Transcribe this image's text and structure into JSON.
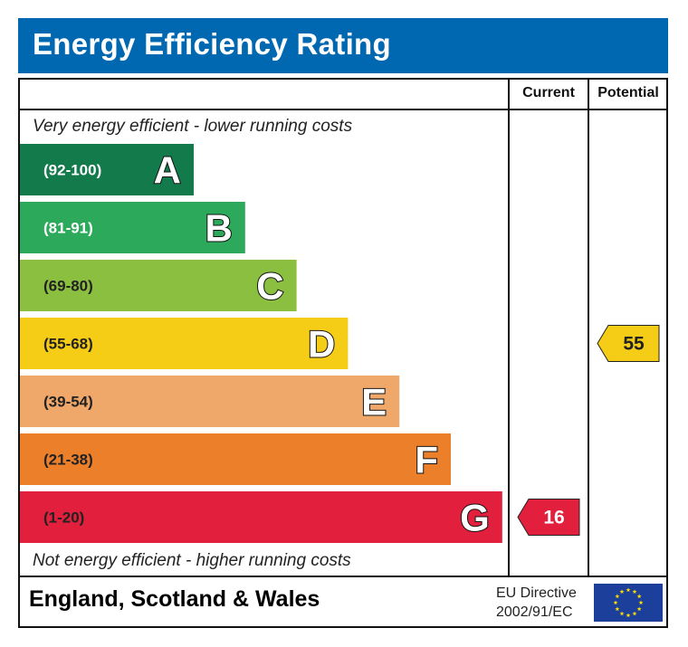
{
  "header": {
    "title": "Energy Efficiency Rating"
  },
  "columns": {
    "current": "Current",
    "potential": "Potential"
  },
  "notes": {
    "top": "Very energy efficient - lower running costs",
    "bottom": "Not energy efficient - higher running costs"
  },
  "footer": {
    "region": "England, Scotland & Wales",
    "directive_line1": "EU Directive",
    "directive_line2": "2002/91/EC"
  },
  "colors": {
    "header": "#0067b1",
    "A": "#137a4c",
    "B": "#2ca95a",
    "C": "#8bbf40",
    "D": "#f5cc16",
    "E": "#f0a76a",
    "F": "#ec7f2a",
    "G": "#e21f3c",
    "eu_flag": "#1b3f9b",
    "eu_stars": "#ffdd00"
  },
  "chart_data": {
    "type": "bar",
    "title": "Energy Efficiency Rating",
    "bands": [
      {
        "letter": "A",
        "range": "(92-100)",
        "color": "#137a4c",
        "label_color": "#ffffff"
      },
      {
        "letter": "B",
        "range": "(81-91)",
        "color": "#2ca95a",
        "label_color": "#ffffff"
      },
      {
        "letter": "C",
        "range": "(69-80)",
        "color": "#8bbf40",
        "label_color": "#222222"
      },
      {
        "letter": "D",
        "range": "(55-68)",
        "color": "#f5cc16",
        "label_color": "#222222"
      },
      {
        "letter": "E",
        "range": "(39-54)",
        "color": "#f0a76a",
        "label_color": "#222222"
      },
      {
        "letter": "F",
        "range": "(21-38)",
        "color": "#ec7f2a",
        "label_color": "#222222"
      },
      {
        "letter": "G",
        "range": "(1-20)",
        "color": "#e21f3c",
        "label_color": "#222222"
      }
    ],
    "current": {
      "value": 16,
      "band": "G",
      "color": "#e21f3c",
      "text_color": "#ffffff"
    },
    "potential": {
      "value": 55,
      "band": "D",
      "color": "#f5cc16",
      "text_color": "#222222"
    }
  }
}
